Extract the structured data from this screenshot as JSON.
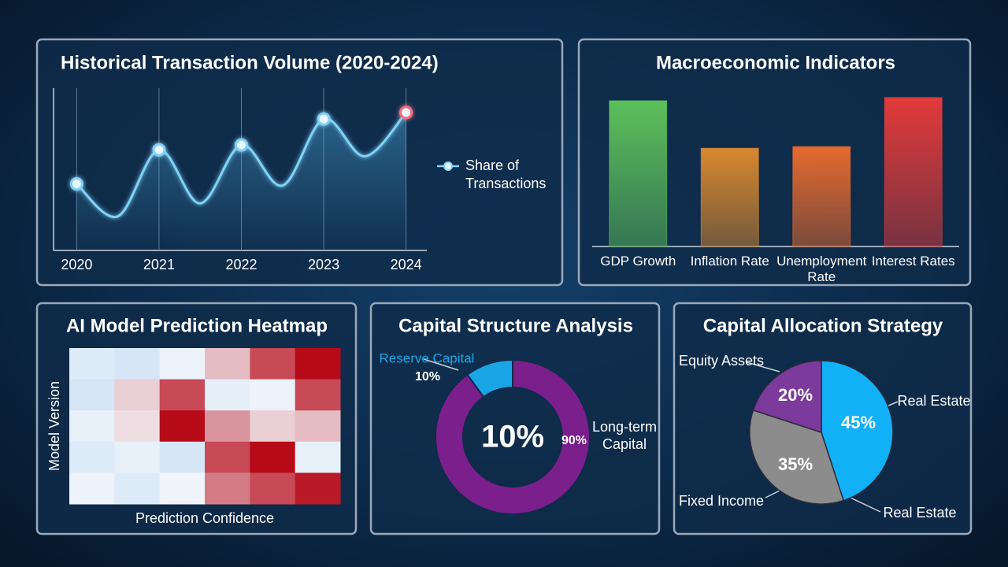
{
  "chart_data": [
    {
      "type": "line",
      "title": "Historical Transaction Volume (2020-2024)",
      "x": [
        2020,
        2020.5,
        2021,
        2021.5,
        2022,
        2022.5,
        2023,
        2023.5,
        2024
      ],
      "xlim": [
        2019.7,
        2024.3
      ],
      "xticks": [
        2020,
        2021,
        2022,
        2023,
        2024
      ],
      "ylim": [
        0,
        100
      ],
      "grid": true,
      "highlight_color": "#ff6b7a",
      "series": [
        {
          "name": "Share of Transactions",
          "color": "#7fd3f7",
          "values": [
            41,
            21,
            62,
            29,
            65,
            40,
            81,
            58,
            85
          ]
        }
      ]
    },
    {
      "type": "bar",
      "title": "Macroeconomic Indicators",
      "categories": [
        "GDP Growth",
        "Inflation Rate",
        "Unemployment Rate",
        "Interest Rates"
      ],
      "values": [
        89,
        60,
        61,
        91
      ],
      "colors": [
        "#5cc05a",
        "#d9882e",
        "#e66a2e",
        "#e23a3a"
      ],
      "ylim": [
        0,
        100
      ]
    },
    {
      "type": "heatmap",
      "title": "AI Model Prediction Heatmap",
      "x_label": "Prediction Confidence",
      "y_label": "Model Version",
      "values": [
        [
          35,
          30,
          45,
          62,
          85,
          98
        ],
        [
          30,
          58,
          85,
          40,
          45,
          85
        ],
        [
          42,
          55,
          98,
          70,
          58,
          62
        ],
        [
          35,
          42,
          30,
          85,
          98,
          42
        ],
        [
          45,
          35,
          48,
          75,
          85,
          95
        ]
      ],
      "zlim": [
        0,
        100
      ],
      "colors": [
        "#a8cdf0",
        "#f4f7fb",
        "#b3000f"
      ]
    },
    {
      "type": "donut",
      "title": "Capital Structure Analysis",
      "categories": [
        "Reserve Capital",
        "Long-term Capital"
      ],
      "values": [
        10,
        90
      ],
      "value_labels": [
        "10%",
        "90%"
      ],
      "colors": [
        "#1aa6e6",
        "#7b1f8c"
      ]
    },
    {
      "type": "pie",
      "title": "Capital Allocation Strategy",
      "categories": [
        "Real Estate",
        "Fixed Income",
        "Equity Assets"
      ],
      "values": [
        45,
        35,
        20
      ],
      "value_labels": [
        "45%",
        "35%",
        "20%"
      ],
      "colors": [
        "#12b0f6",
        "#8c8c8c",
        "#7b3a9c"
      ]
    }
  ]
}
